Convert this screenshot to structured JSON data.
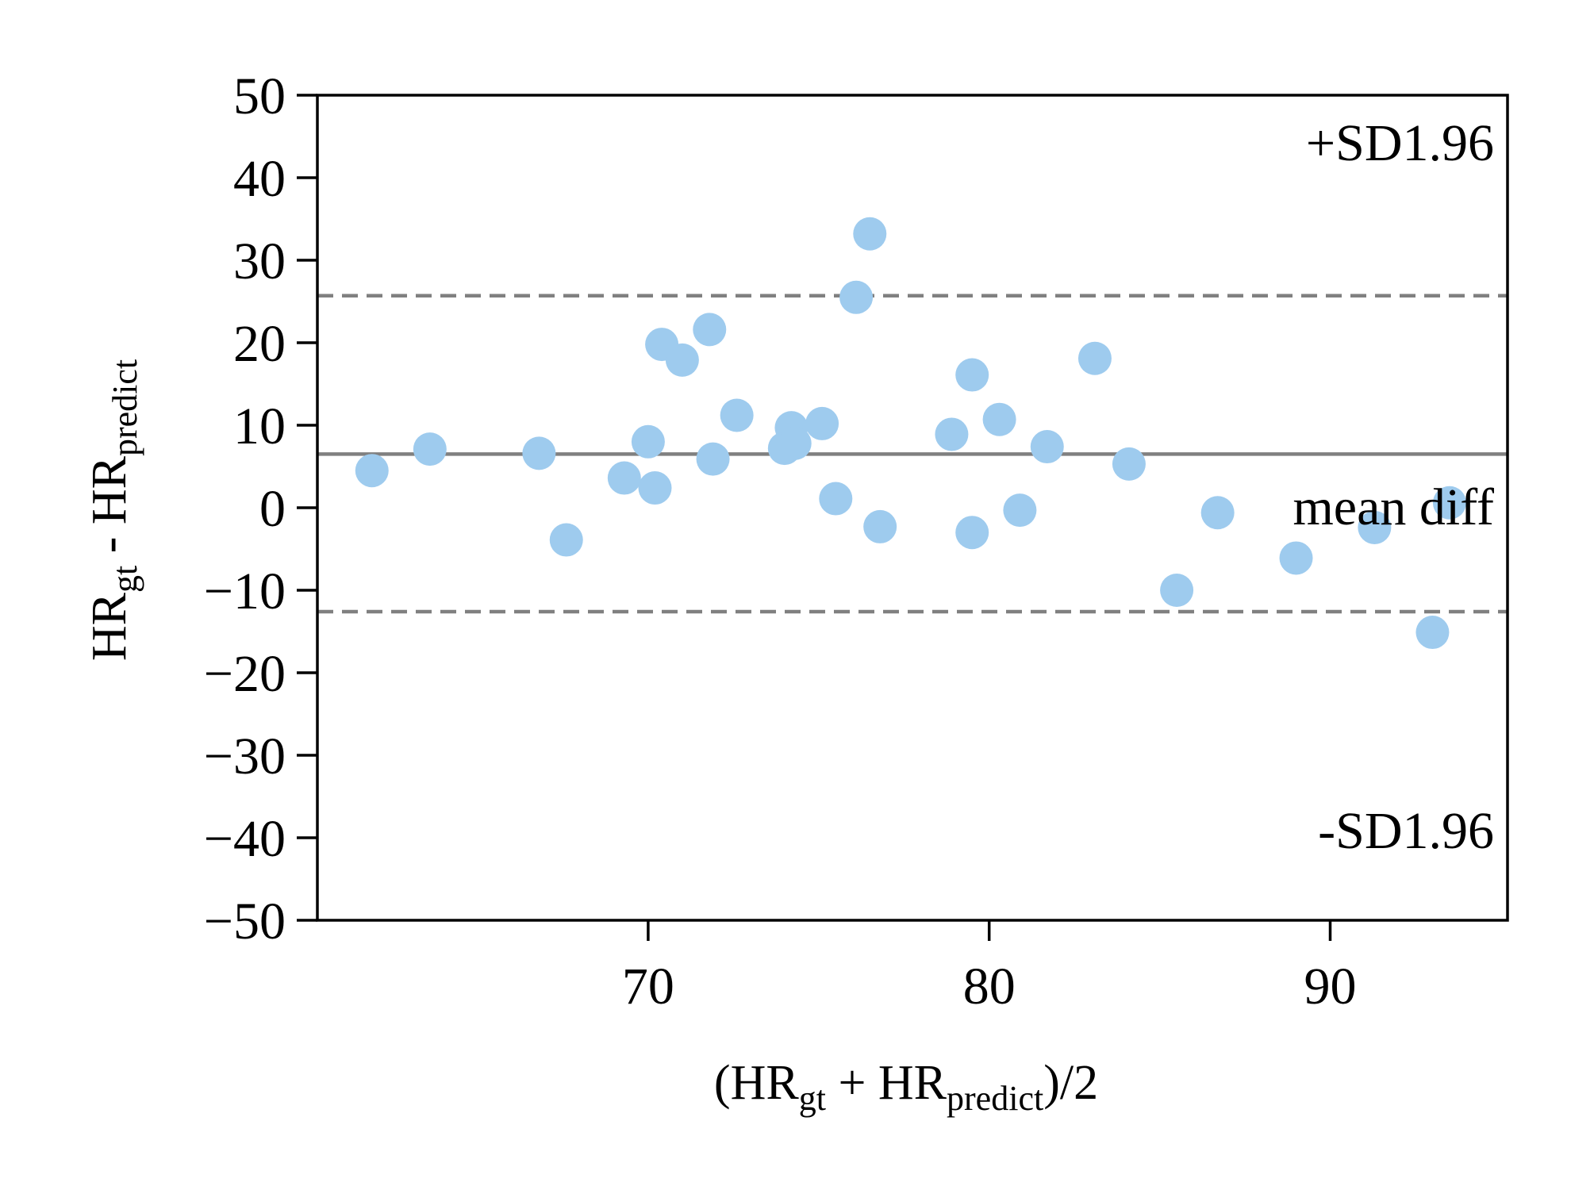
{
  "chart_data": {
    "type": "scatter",
    "title": "",
    "xlabel": {
      "parts": [
        {
          "text": "(HR",
          "sub": false
        },
        {
          "text": "gt",
          "sub": true
        },
        {
          "text": " + HR",
          "sub": false
        },
        {
          "text": "predict",
          "sub": true
        },
        {
          "text": ")/2",
          "sub": false
        }
      ]
    },
    "ylabel": {
      "parts": [
        {
          "text": "HR",
          "sub": false
        },
        {
          "text": "gt",
          "sub": true
        },
        {
          "text": " - HR",
          "sub": false
        },
        {
          "text": "predict",
          "sub": true
        }
      ]
    },
    "xlim": [
      60.3,
      95.2
    ],
    "ylim": [
      -50,
      50
    ],
    "xticks": [
      70,
      80,
      90
    ],
    "yticks": [
      50,
      40,
      30,
      20,
      10,
      0,
      -10,
      -20,
      -30,
      -40,
      -50
    ],
    "ytick_labels": [
      "50",
      "40",
      "30",
      "20",
      "10",
      "0",
      "−10",
      "−20",
      "−30",
      "−40",
      "−50"
    ],
    "grid": false,
    "point_color": "#9ecbee",
    "line_color": "#808080",
    "reference_lines": [
      {
        "name": "upper-limit",
        "y": 25.7,
        "style": "dashed"
      },
      {
        "name": "mean",
        "y": 6.5,
        "style": "solid"
      },
      {
        "name": "lower-limit",
        "y": -12.6,
        "style": "dashed"
      }
    ],
    "annotations": {
      "upper": "+SD1.96",
      "mean": "mean diff",
      "lower": "-SD1.96"
    },
    "points": [
      {
        "x": 61.9,
        "y": 4.5
      },
      {
        "x": 63.6,
        "y": 7.1
      },
      {
        "x": 66.8,
        "y": 6.6
      },
      {
        "x": 67.6,
        "y": -3.9
      },
      {
        "x": 69.3,
        "y": 3.6
      },
      {
        "x": 70.0,
        "y": 8.0
      },
      {
        "x": 70.2,
        "y": 2.4
      },
      {
        "x": 70.4,
        "y": 19.8
      },
      {
        "x": 71.0,
        "y": 17.9
      },
      {
        "x": 71.8,
        "y": 21.6
      },
      {
        "x": 71.9,
        "y": 5.9
      },
      {
        "x": 72.6,
        "y": 11.2
      },
      {
        "x": 74.0,
        "y": 7.2
      },
      {
        "x": 74.2,
        "y": 9.7
      },
      {
        "x": 74.3,
        "y": 7.8
      },
      {
        "x": 75.1,
        "y": 10.2
      },
      {
        "x": 75.5,
        "y": 1.1
      },
      {
        "x": 76.1,
        "y": 25.5
      },
      {
        "x": 76.5,
        "y": 33.2
      },
      {
        "x": 76.8,
        "y": -2.3
      },
      {
        "x": 78.9,
        "y": 8.9
      },
      {
        "x": 79.5,
        "y": 16.1
      },
      {
        "x": 79.5,
        "y": -3.0
      },
      {
        "x": 80.3,
        "y": 10.7
      },
      {
        "x": 80.9,
        "y": -0.3
      },
      {
        "x": 81.7,
        "y": 7.4
      },
      {
        "x": 83.1,
        "y": 18.1
      },
      {
        "x": 84.1,
        "y": 5.3
      },
      {
        "x": 85.5,
        "y": -10.0
      },
      {
        "x": 86.7,
        "y": -0.6
      },
      {
        "x": 89.0,
        "y": -6.1
      },
      {
        "x": 91.3,
        "y": -2.4
      },
      {
        "x": 93.0,
        "y": -15.1
      },
      {
        "x": 93.5,
        "y": 0.6
      }
    ]
  }
}
